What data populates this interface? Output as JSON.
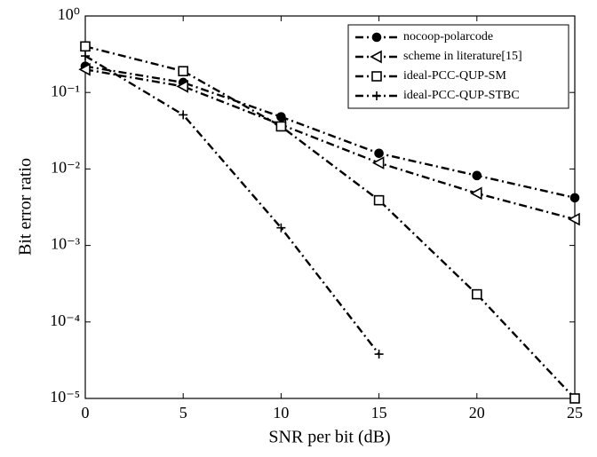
{
  "chart_data": {
    "type": "line",
    "x_label": "SNR per bit (dB)",
    "y_label": "Bit error ratio",
    "x": [
      0,
      5,
      10,
      15,
      20,
      25
    ],
    "xlim": [
      0,
      25
    ],
    "xticks": [
      0,
      5,
      10,
      15,
      20,
      25
    ],
    "log_y": true,
    "ylim": [
      1e-05,
      1
    ],
    "yticks": [
      {
        "value": 1,
        "label": "10⁰"
      },
      {
        "value": 0.1,
        "label": "10⁻¹"
      },
      {
        "value": 0.01,
        "label": "10⁻²"
      },
      {
        "value": 0.001,
        "label": "10⁻³"
      },
      {
        "value": 0.0001,
        "label": "10⁻⁴"
      },
      {
        "value": 1e-05,
        "label": "10⁻⁵"
      }
    ],
    "legend": "upper right",
    "series": [
      {
        "name": "nocoop-polarcode",
        "color": "#000000",
        "marker": "circle",
        "values": [
          0.22,
          0.135,
          0.048,
          0.016,
          0.0082,
          0.0042
        ]
      },
      {
        "name": "scheme in literature[15]",
        "color": "#000000",
        "marker": "triangle-left",
        "values": [
          0.2,
          0.12,
          0.038,
          0.012,
          0.0048,
          0.0022
        ]
      },
      {
        "name": "ideal-PCC-QUP-SM",
        "color": "#000000",
        "marker": "square",
        "values": [
          0.4,
          0.19,
          0.036,
          0.0039,
          0.00023,
          1e-05
        ]
      },
      {
        "name": "ideal-PCC-QUP-STBC",
        "color": "#000000",
        "marker": "plus",
        "values": [
          0.3,
          0.051,
          0.0017,
          3.8e-05,
          null,
          null
        ]
      }
    ]
  }
}
